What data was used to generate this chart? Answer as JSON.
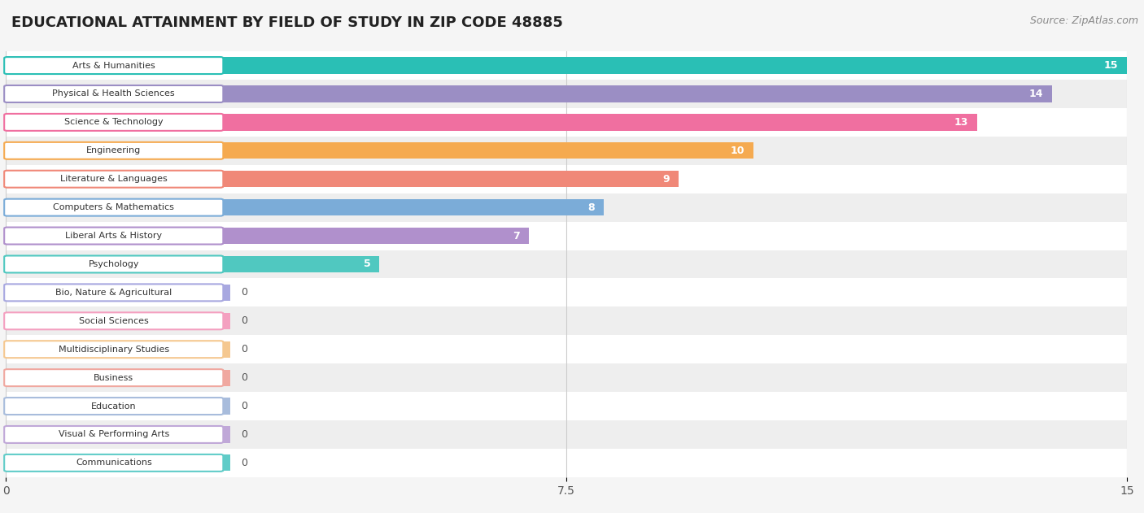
{
  "title": "EDUCATIONAL ATTAINMENT BY FIELD OF STUDY IN ZIP CODE 48885",
  "source": "Source: ZipAtlas.com",
  "categories": [
    "Arts & Humanities",
    "Physical & Health Sciences",
    "Science & Technology",
    "Engineering",
    "Literature & Languages",
    "Computers & Mathematics",
    "Liberal Arts & History",
    "Psychology",
    "Bio, Nature & Agricultural",
    "Social Sciences",
    "Multidisciplinary Studies",
    "Business",
    "Education",
    "Visual & Performing Arts",
    "Communications"
  ],
  "values": [
    15,
    14,
    13,
    10,
    9,
    8,
    7,
    5,
    0,
    0,
    0,
    0,
    0,
    0,
    0
  ],
  "bar_colors": [
    "#2abfb5",
    "#9b8ec4",
    "#f06fa0",
    "#f5aa50",
    "#f08878",
    "#7bacd8",
    "#b090cc",
    "#50c8c0",
    "#a8a8e0",
    "#f4a0c0",
    "#f5c890",
    "#f0a8a0",
    "#a8bcdc",
    "#c0a8d8",
    "#60ccc8"
  ],
  "xlim": [
    0,
    15
  ],
  "xticks": [
    0,
    7.5,
    15
  ],
  "background_color": "#f5f5f5",
  "row_bg_even": "#ffffff",
  "row_bg_odd": "#eeeeee",
  "title_fontsize": 13,
  "source_fontsize": 9,
  "zero_bar_width": 3.0
}
